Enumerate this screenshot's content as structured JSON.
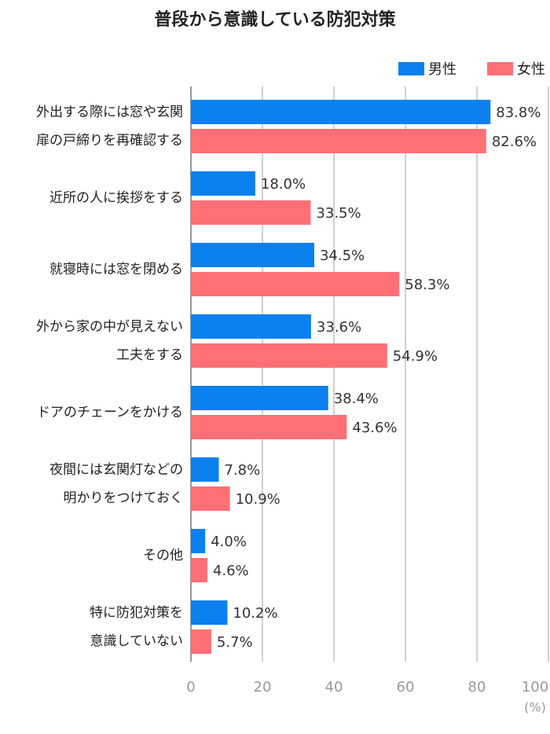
{
  "chart_data": {
    "type": "bar",
    "orientation": "horizontal",
    "title": "普段から意識している防犯対策",
    "categories": [
      "外出する際には窓や玄関\n扉の戸締りを再確認する",
      "近所の人に挨拶をする",
      "就寝時には窓を閉める",
      "外から家の中が見えない\n工夫をする",
      "ドアのチェーンをかける",
      "夜間には玄関灯などの\n明かりをつけておく",
      "その他",
      "特に防犯対策を\n意識していない"
    ],
    "series": [
      {
        "name": "男性",
        "color": "#0b80ef",
        "values": [
          83.8,
          18.0,
          34.5,
          33.6,
          38.4,
          7.8,
          4.0,
          10.2
        ],
        "value_labels": [
          "83.8%",
          "18.0%",
          "34.5%",
          "33.6%",
          "38.4%",
          "7.8%",
          "4.0%",
          "10.2%"
        ]
      },
      {
        "name": "女性",
        "color": "#ff6f76",
        "values": [
          82.6,
          33.5,
          58.3,
          54.9,
          43.6,
          10.9,
          4.6,
          5.7
        ],
        "value_labels": [
          "82.6%",
          "33.5%",
          "58.3%",
          "54.9%",
          "43.6%",
          "10.9%",
          "4.6%",
          "5.7%"
        ]
      }
    ],
    "xlim": [
      0,
      100
    ],
    "xticks": [
      0,
      20,
      40,
      60,
      80,
      100
    ],
    "x_label": "(%)",
    "grid": true,
    "legend": "top-right"
  }
}
